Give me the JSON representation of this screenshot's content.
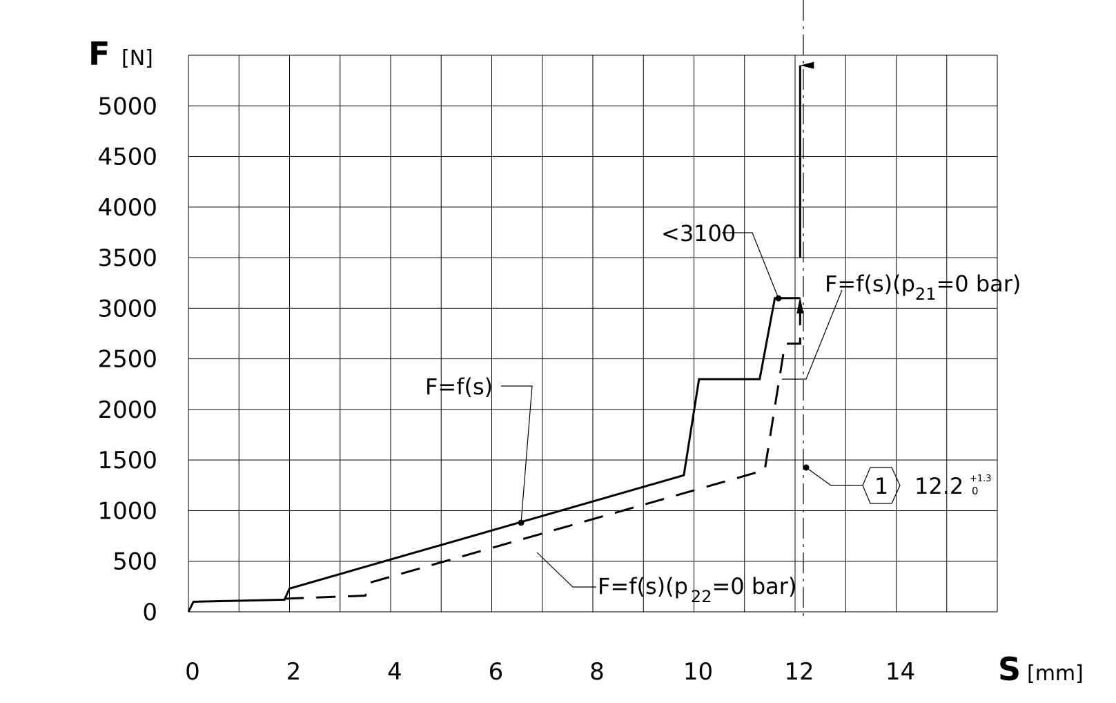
{
  "chart_data": {
    "type": "line",
    "title": "",
    "xlabel": "S",
    "xunit": "[mm]",
    "ylabel": "F",
    "yunit": "[N]",
    "xlim": [
      0,
      16
    ],
    "ylim": [
      0,
      5500
    ],
    "grid": true,
    "x_ticks": [
      "0",
      "2",
      "4",
      "6",
      "8",
      "10",
      "12",
      "14"
    ],
    "y_ticks": [
      "0",
      "500",
      "1000",
      "1500",
      "2000",
      "2500",
      "3000",
      "3500",
      "4000",
      "4500",
      "5000"
    ],
    "series": [
      {
        "style": "solid",
        "points": [
          [
            0,
            0
          ],
          [
            0.1,
            100
          ],
          [
            1.9,
            120
          ],
          [
            2.0,
            230
          ],
          [
            9.8,
            1350
          ],
          [
            10.1,
            2300
          ],
          [
            11.3,
            2300
          ],
          [
            11.6,
            3100
          ],
          [
            12.1,
            3100
          ]
        ]
      },
      {
        "style": "dashed",
        "points": [
          [
            1.9,
            130
          ],
          [
            3.5,
            160
          ],
          [
            3.6,
            290
          ],
          [
            11.4,
            1400
          ],
          [
            11.8,
            2650
          ],
          [
            12.1,
            2650
          ],
          [
            12.1,
            3100
          ]
        ]
      },
      {
        "style": "solid-arrow",
        "points": [
          [
            12.1,
            3500
          ],
          [
            12.1,
            5400
          ]
        ]
      }
    ],
    "annotations": [
      {
        "text": "F=f(s)",
        "anchor": [
          6.5,
          880
        ]
      },
      {
        "text": "<3100",
        "anchor": [
          11.6,
          3100
        ]
      },
      {
        "text": "F=f(s)(p",
        "sub": "21",
        "tail": "=0 bar)",
        "anchor": [
          12.1,
          2300
        ]
      },
      {
        "text": "F=f(s)(p",
        "sub": "22",
        "tail": "=0 bar)",
        "anchor": [
          6.5,
          700
        ]
      },
      {
        "text": "12.2",
        "tol_upper": "+1.3",
        "tol_lower": "0",
        "marker": "1",
        "anchor": [
          12.1,
          1430
        ]
      }
    ]
  }
}
